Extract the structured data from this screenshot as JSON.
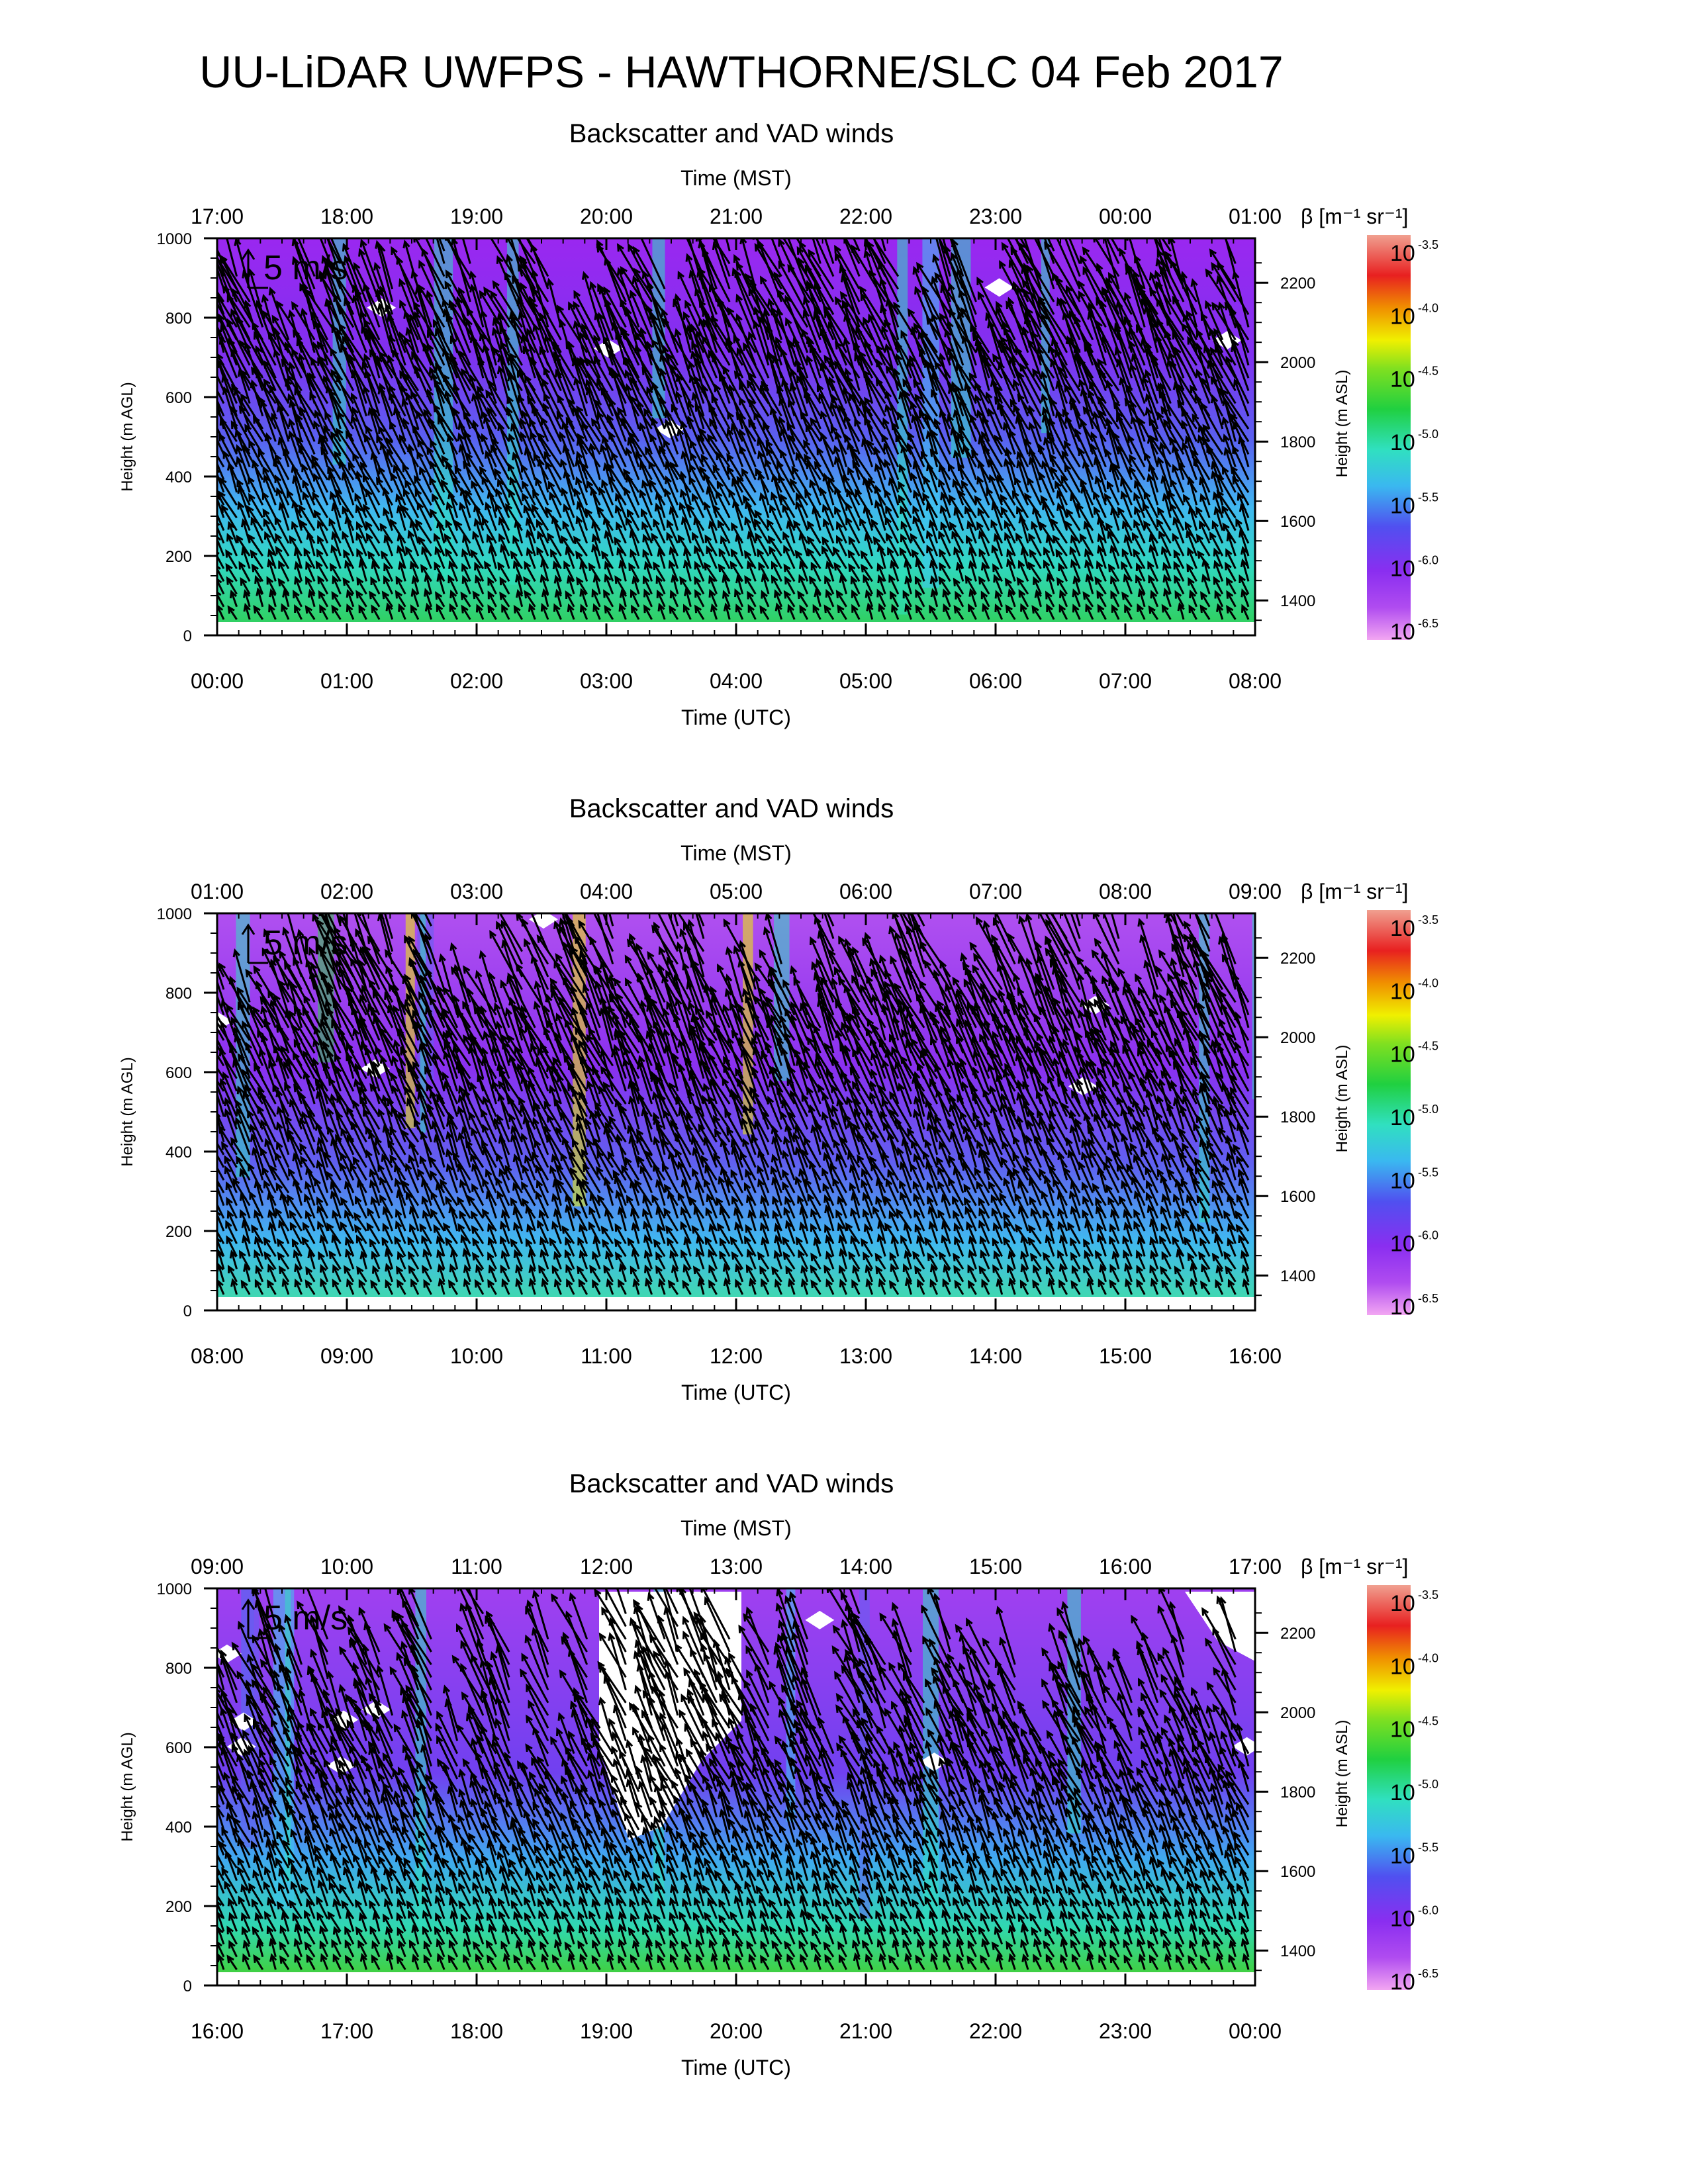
{
  "page": {
    "title": "UU-LiDAR UWFPS - HAWTHORNE/SLC 04 Feb 2017"
  },
  "chart_data": [
    {
      "type": "heatmap",
      "title": "Backscatter and VAD winds",
      "x_top_label": "Time (MST)",
      "x_top_ticks": [
        "17:00",
        "18:00",
        "19:00",
        "20:00",
        "21:00",
        "22:00",
        "23:00",
        "00:00",
        "01:00"
      ],
      "x_bottom_label": "Time (UTC)",
      "x_bottom_ticks": [
        "00:00",
        "01:00",
        "02:00",
        "03:00",
        "04:00",
        "05:00",
        "06:00",
        "07:00",
        "08:00"
      ],
      "ylabel": "Height (m AGL)",
      "yticks": [
        "0",
        "200",
        "400",
        "600",
        "800",
        "1000"
      ],
      "ylim": [
        0,
        1000
      ],
      "y2label": "Height (m ASL)",
      "y2ticks": [
        "1400",
        "1600",
        "1800",
        "2000",
        "2200"
      ],
      "vector_scale_label": "5 m/s",
      "colorbar": {
        "label": "β [m⁻¹ sr⁻¹]",
        "exponents": [
          "-3.5",
          "-4.0",
          "-4.5",
          "-5.0",
          "-5.5",
          "-6.0",
          "-6.5"
        ],
        "base": "10"
      }
    },
    {
      "type": "heatmap",
      "title": "Backscatter and VAD winds",
      "x_top_label": "Time (MST)",
      "x_top_ticks": [
        "01:00",
        "02:00",
        "03:00",
        "04:00",
        "05:00",
        "06:00",
        "07:00",
        "08:00",
        "09:00"
      ],
      "x_bottom_label": "Time (UTC)",
      "x_bottom_ticks": [
        "08:00",
        "09:00",
        "10:00",
        "11:00",
        "12:00",
        "13:00",
        "14:00",
        "15:00",
        "16:00"
      ],
      "ylabel": "Height (m AGL)",
      "yticks": [
        "0",
        "200",
        "400",
        "600",
        "800",
        "1000"
      ],
      "ylim": [
        0,
        1000
      ],
      "y2label": "Height (m ASL)",
      "y2ticks": [
        "1400",
        "1600",
        "1800",
        "2000",
        "2200"
      ],
      "vector_scale_label": "5 m/s",
      "colorbar": {
        "label": "β [m⁻¹ sr⁻¹]",
        "exponents": [
          "-3.5",
          "-4.0",
          "-4.5",
          "-5.0",
          "-5.5",
          "-6.0",
          "-6.5"
        ],
        "base": "10"
      }
    },
    {
      "type": "heatmap",
      "title": "Backscatter and VAD winds",
      "x_top_label": "Time (MST)",
      "x_top_ticks": [
        "09:00",
        "10:00",
        "11:00",
        "12:00",
        "13:00",
        "14:00",
        "15:00",
        "16:00",
        "17:00"
      ],
      "x_bottom_label": "Time (UTC)",
      "x_bottom_ticks": [
        "16:00",
        "17:00",
        "18:00",
        "19:00",
        "20:00",
        "21:00",
        "22:00",
        "23:00",
        "00:00"
      ],
      "ylabel": "Height (m AGL)",
      "yticks": [
        "0",
        "200",
        "400",
        "600",
        "800",
        "1000"
      ],
      "ylim": [
        0,
        1000
      ],
      "y2label": "Height (m ASL)",
      "y2ticks": [
        "1400",
        "1600",
        "1800",
        "2000",
        "2200"
      ],
      "vector_scale_label": "5 m/s",
      "colorbar": {
        "label": "β [m⁻¹ sr⁻¹]",
        "exponents": [
          "-3.5",
          "-4.0",
          "-4.5",
          "-5.0",
          "-5.5",
          "-6.0",
          "-6.5"
        ],
        "base": "10"
      }
    }
  ]
}
